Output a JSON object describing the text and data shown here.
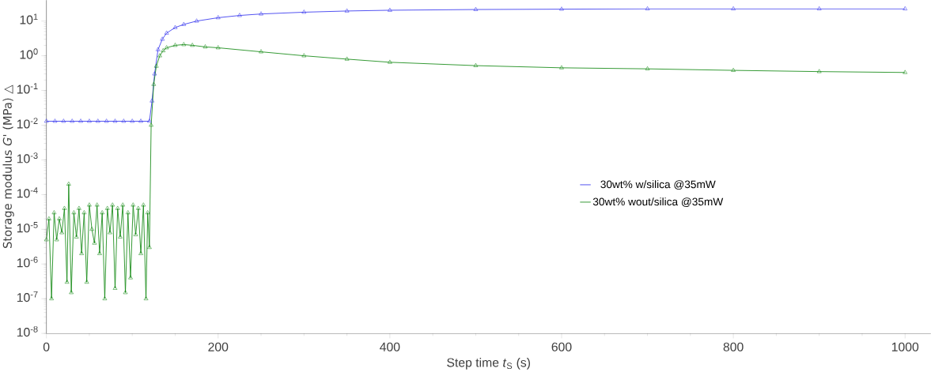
{
  "chart_data": {
    "type": "line",
    "xlabel": "Step time *t*$_{S}$ (s)",
    "ylabel": "Storage modulus *G'* (MPa) △",
    "log": "y",
    "marker": "triangle",
    "line_style": "solid",
    "legend": "right",
    "grid": false,
    "xlim": [
      0,
      1030
    ],
    "ylim": [
      1e-08,
      40
    ],
    "xticks": [
      0,
      200,
      400,
      600,
      800,
      1000
    ],
    "yticks": [
      {
        "value": 1e-08,
        "label": "10$^{-8}$"
      },
      {
        "value": 1e-07,
        "label": "10$^{-7}$"
      },
      {
        "value": 1e-06,
        "label": "10$^{-6}$"
      },
      {
        "value": 1e-05,
        "label": "10$^{-5}$"
      },
      {
        "value": 0.0001,
        "label": "10$^{-4}$"
      },
      {
        "value": 0.001,
        "label": "10$^{-3}$"
      },
      {
        "value": 0.01,
        "label": "10$^{-2}$"
      },
      {
        "value": 0.1,
        "label": "10$^{-1}$"
      },
      {
        "value": 1,
        "label": "10$^{0}$"
      },
      {
        "value": 10,
        "label": "10$^{1}$"
      }
    ],
    "series": [
      {
        "name": "30wt% w/silica @35mW",
        "color": "#3333ee",
        "x": [
          0,
          10,
          20,
          30,
          40,
          50,
          60,
          70,
          80,
          90,
          100,
          110,
          120,
          123,
          126,
          130,
          135,
          140,
          150,
          160,
          175,
          200,
          225,
          250,
          300,
          350,
          400,
          500,
          600,
          700,
          800,
          900,
          1000
        ],
        "values": [
          0.013,
          0.013,
          0.013,
          0.013,
          0.013,
          0.013,
          0.013,
          0.013,
          0.013,
          0.013,
          0.013,
          0.013,
          0.013,
          0.05,
          0.3,
          1.5,
          3,
          4.5,
          6.5,
          8,
          10,
          12.5,
          14.5,
          16,
          18,
          19.5,
          20.5,
          21.5,
          22,
          22.5,
          22.5,
          22.5,
          22.5
        ]
      },
      {
        "name": "30wt% wout/silica @35mW",
        "color": "#118811",
        "x": [
          0,
          3,
          6,
          9,
          12,
          15,
          18,
          21,
          24,
          26,
          29,
          32,
          35,
          38,
          41,
          44,
          47,
          50,
          53,
          56,
          59,
          62,
          65,
          68,
          71,
          74,
          77,
          80,
          83,
          86,
          89,
          92,
          95,
          98,
          101,
          104,
          107,
          110,
          113,
          116,
          118,
          120,
          122,
          125,
          128,
          132,
          136,
          140,
          150,
          160,
          170,
          185,
          200,
          250,
          300,
          350,
          400,
          500,
          600,
          700,
          800,
          900,
          1000
        ],
        "values": [
          5e-06,
          2e-05,
          1e-07,
          3e-05,
          5e-06,
          2e-05,
          8e-06,
          4e-05,
          3e-07,
          0.0002,
          1.5e-07,
          3e-05,
          6e-06,
          4e-05,
          2e-06,
          3e-05,
          3e-07,
          5e-05,
          1e-05,
          4e-06,
          5e-05,
          2e-06,
          3e-05,
          1e-07,
          4e-05,
          8e-06,
          5e-05,
          2e-07,
          4e-05,
          6e-06,
          5e-05,
          1.5e-07,
          3e-05,
          4e-07,
          5e-05,
          7e-06,
          4e-05,
          2e-06,
          5e-05,
          1e-07,
          3e-05,
          3e-06,
          0.01,
          0.15,
          0.5,
          1.0,
          1.4,
          1.7,
          2.0,
          2.1,
          2.0,
          1.8,
          1.7,
          1.3,
          1.0,
          0.8,
          0.65,
          0.52,
          0.45,
          0.42,
          0.38,
          0.35,
          0.33
        ]
      }
    ]
  }
}
